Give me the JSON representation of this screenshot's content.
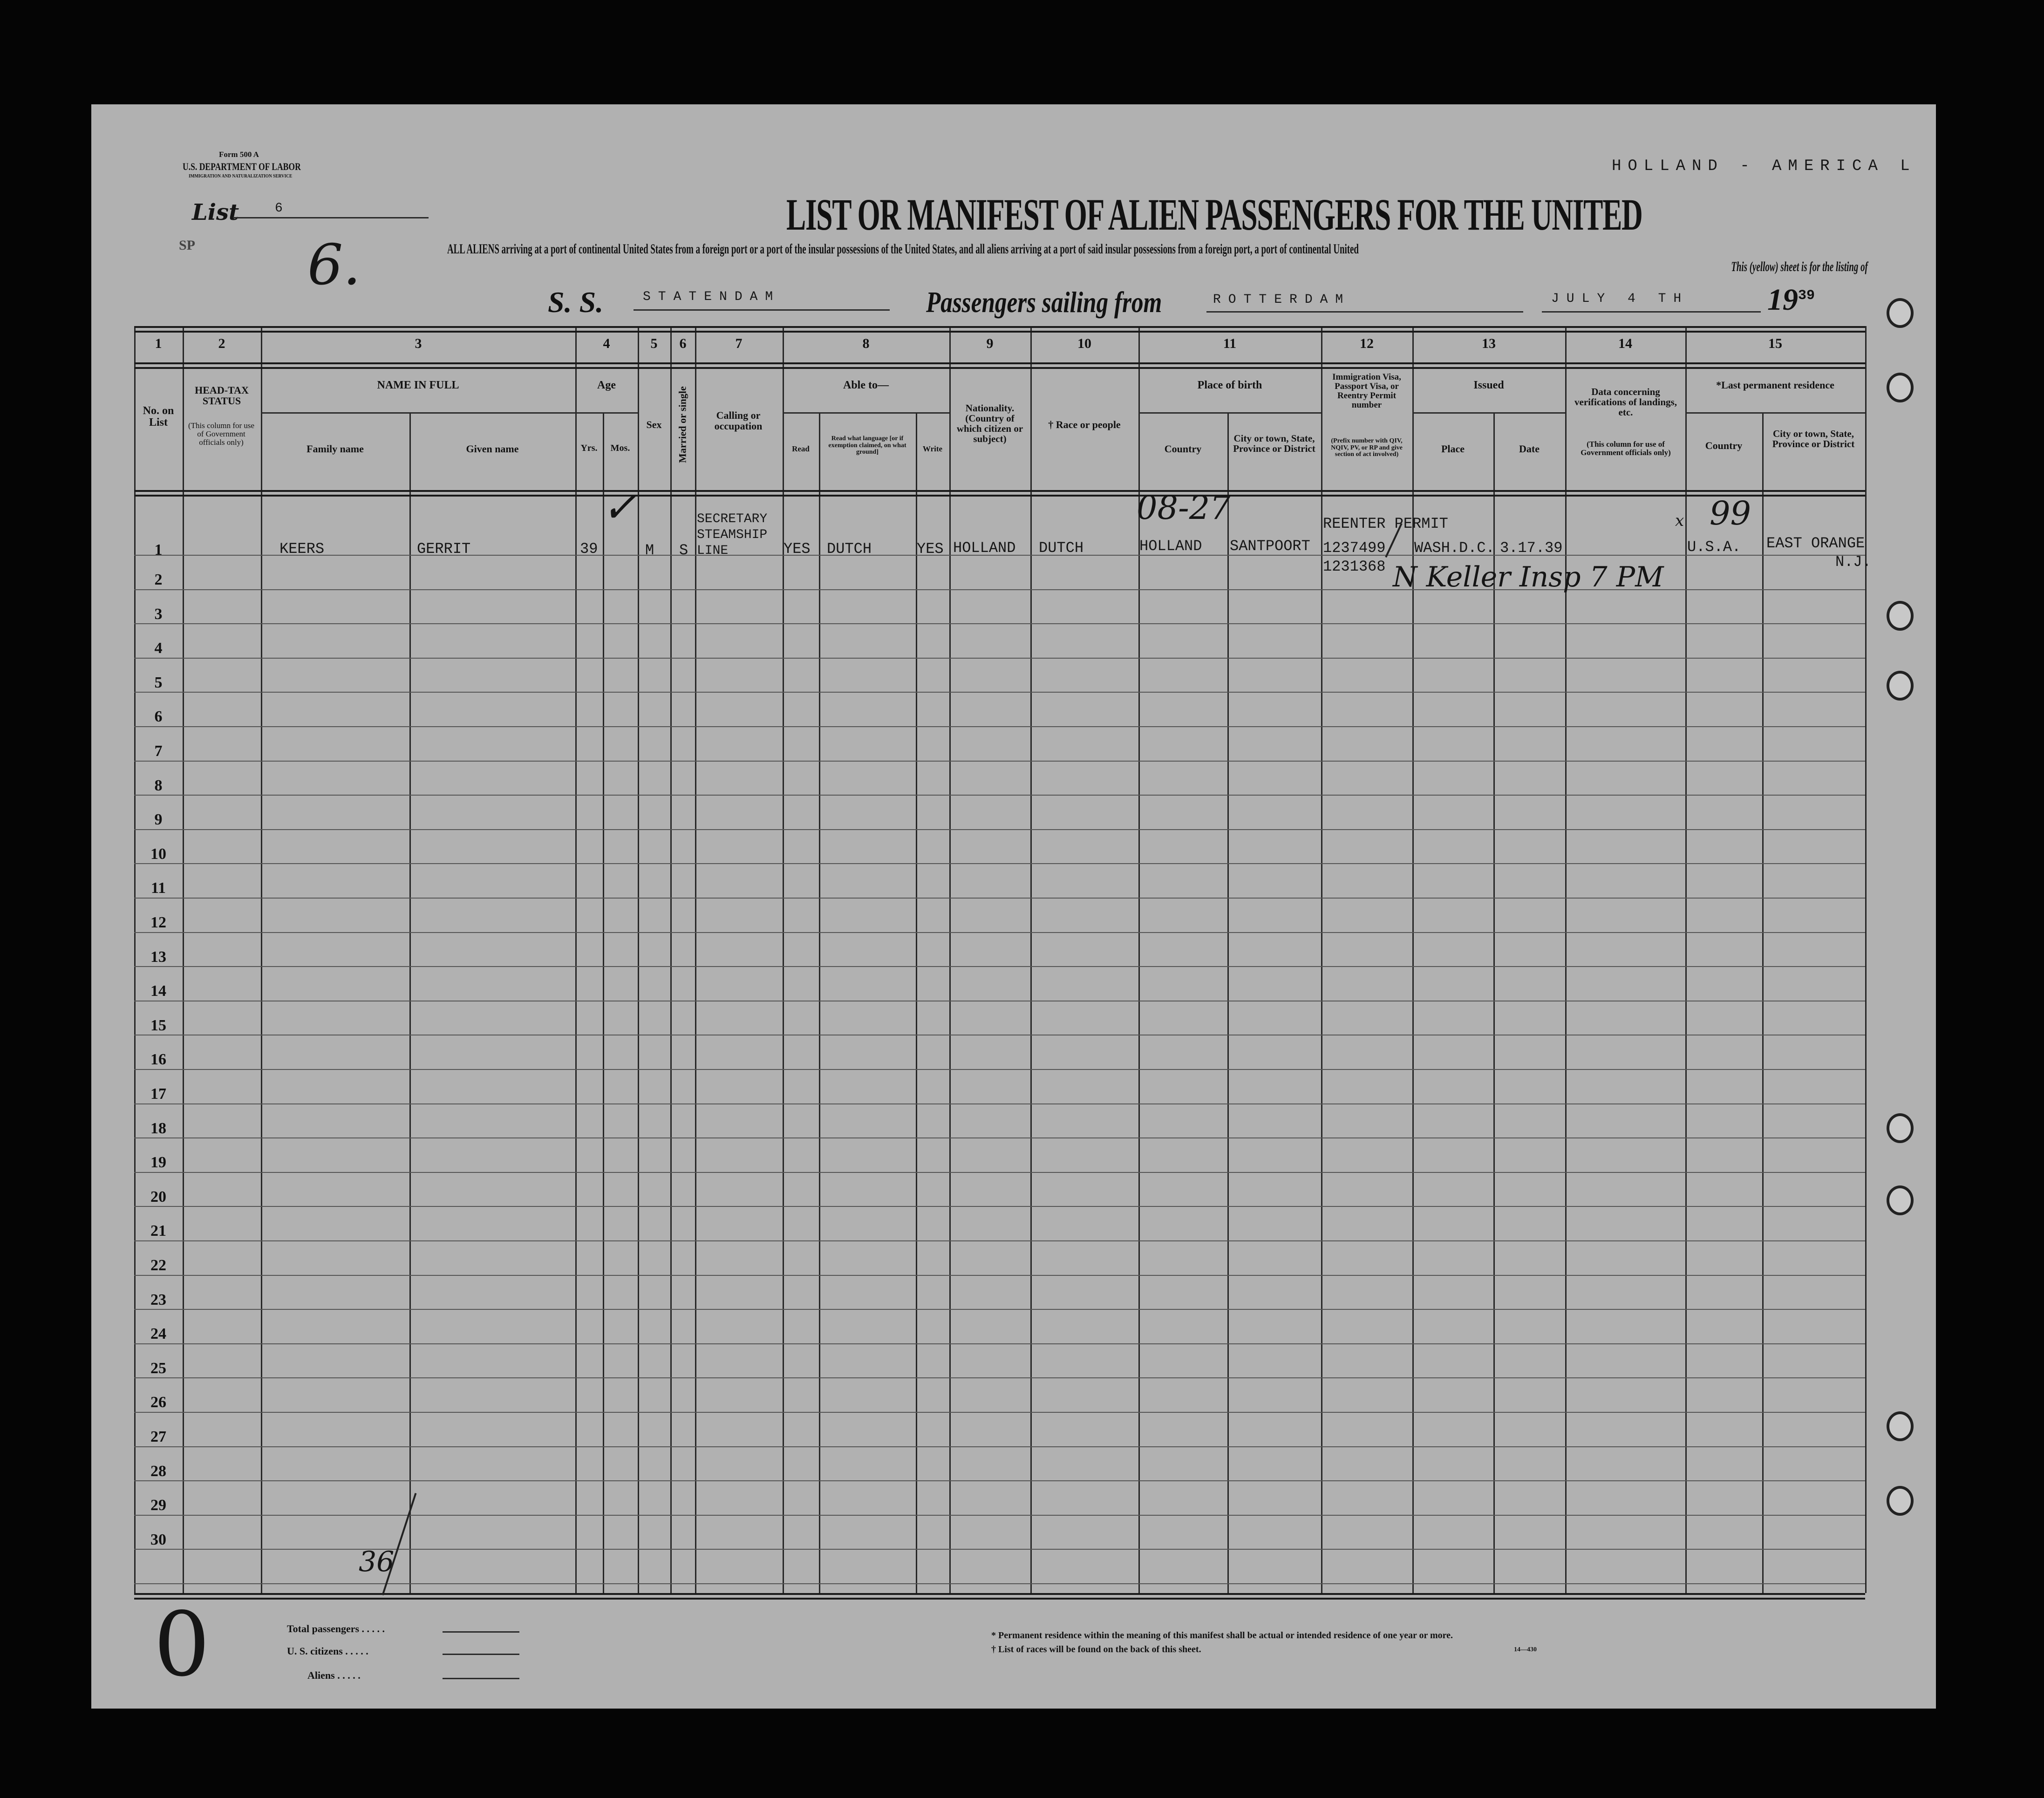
{
  "form": {
    "form_number": "Form 500 A",
    "department": "U.S. DEPARTMENT OF LABOR",
    "service": "IMMIGRATION AND NATURALIZATION SERVICE",
    "company": "HOLLAND - AMERICA L",
    "list_label": "List",
    "list_number": "6",
    "sp_mark": "SP",
    "handwritten_list_number": "6.",
    "title": "LIST OR MANIFEST OF ALIEN PASSENGERS FOR THE UNITED",
    "instruction": "ALL ALIENS arriving at a port of continental United States from a foreign port or a port of the insular possessions of the United States, and all aliens arriving at a port of said insular possessions from a foreign port, a port of continental United",
    "sheet_note": "This (yellow) sheet is for the listing of",
    "ss_label": "S. S.",
    "ship": "STATENDAM",
    "sailing_label": "Passengers sailing from",
    "port": "ROTTERDAM",
    "date": "JULY 4 TH",
    "year_prefix": "19",
    "year_suffix": "39"
  },
  "columns": {
    "numbers": [
      "1",
      "2",
      "3",
      "4",
      "5",
      "6",
      "7",
      "8",
      "9",
      "10",
      "11",
      "12",
      "13",
      "14",
      "15"
    ],
    "no_on_list": "No. on List",
    "head_tax": "HEAD-TAX STATUS",
    "head_tax_note": "(This column for use of Government officials only)",
    "name_in_full": "NAME IN FULL",
    "family_name": "Family name",
    "given_name": "Given name",
    "age": "Age",
    "yrs": "Yrs.",
    "mos": "Mos.",
    "sex": "Sex",
    "married": "Married or single",
    "calling": "Calling or occupation",
    "able_to": "Able to—",
    "read": "Read",
    "read_language": "Read what language [or if exemption claimed, on what ground]",
    "write": "Write",
    "nationality": "Nationality. (Country of which citizen or subject)",
    "race": "† Race or people",
    "place_of_birth": "Place of birth",
    "country": "Country",
    "city": "City or town, State, Province or District",
    "visa": "Immigration Visa, Passport Visa, or Reentry Permit number",
    "visa_note": "(Prefix number with QIV, NQIV, PV, or RP and give section of act involved)",
    "issued": "Issued",
    "place": "Place",
    "date": "Date",
    "verification": "Data concerning verifications of landings, etc.",
    "verification_note": "(This column for use of Government officials only)",
    "last_residence": "*Last permanent residence",
    "res_country": "Country",
    "res_city": "City or town, State, Province or District"
  },
  "row_numbers": [
    "1",
    "2",
    "3",
    "4",
    "5",
    "6",
    "7",
    "8",
    "9",
    "10",
    "11",
    "12",
    "13",
    "14",
    "15",
    "16",
    "17",
    "18",
    "19",
    "20",
    "21",
    "22",
    "23",
    "24",
    "25",
    "26",
    "27",
    "28",
    "29",
    "30"
  ],
  "passenger": {
    "family_name": "KEERS",
    "given_name": "GERRIT",
    "age_yrs": "39",
    "sex": "M",
    "married": "S",
    "occupation": [
      "SECRETARY",
      "STEAMSHIP",
      "LINE"
    ],
    "read": "YES",
    "language": "DUTCH",
    "write": "YES",
    "nationality": "HOLLAND",
    "race": "DUTCH",
    "birth_country": "HOLLAND",
    "birth_city": "SANTPOORT",
    "permit_label": "REENTER PERMIT",
    "permit_number": "1237499",
    "permit_number_2": "1231368",
    "issued_place": "WASH.D.C.",
    "issued_date": "3.17.39",
    "res_country": "U.S.A.",
    "res_city": "EAST ORANGE",
    "res_state": "N.J.",
    "hand_birth_note": "08-27",
    "hand_residence_note": "99",
    "hand_x": "x",
    "hand_inspector": "N Keller Insp 7 PM",
    "hand_total": "36"
  },
  "footer": {
    "total_passengers": "Total passengers",
    "us_citizens": "U. S. citizens",
    "aliens": "Aliens",
    "dots": ". . . . .",
    "footnote_1": "* Permanent residence within the meaning of this manifest shall be actual or intended residence of one year or more.",
    "footnote_2": "† List of races will be found on the back of this sheet.",
    "form_code": "14—430",
    "hand_zero": "0"
  }
}
